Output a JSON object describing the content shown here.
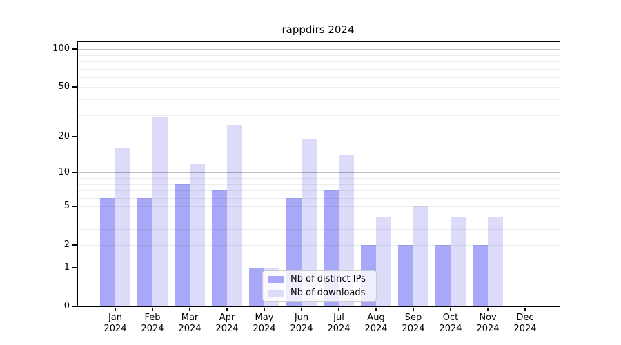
{
  "title": "rappdirs 2024",
  "legend": {
    "items": [
      {
        "label": "Nb of distinct IPs",
        "color": "#a8a8f8"
      },
      {
        "label": "Nb of downloads",
        "color": "#dcdcfa"
      }
    ]
  },
  "chart_data": {
    "type": "bar",
    "title": "rappdirs 2024",
    "categories": [
      "Jan 2024",
      "Feb 2024",
      "Mar 2024",
      "Apr 2024",
      "May 2024",
      "Jun 2024",
      "Jul 2024",
      "Aug 2024",
      "Sep 2024",
      "Oct 2024",
      "Nov 2024",
      "Dec 2024"
    ],
    "x_tick_months": [
      "Jan",
      "Feb",
      "Mar",
      "Apr",
      "May",
      "Jun",
      "Jul",
      "Aug",
      "Sep",
      "Oct",
      "Nov",
      "Dec"
    ],
    "x_tick_year": "2024",
    "series": [
      {
        "name": "Nb of distinct IPs",
        "color": "#a8a8f8",
        "values": [
          6,
          6,
          8,
          7,
          1,
          6,
          7,
          2,
          2,
          2,
          2,
          0
        ]
      },
      {
        "name": "Nb of downloads",
        "color": "#dcdcfa",
        "values": [
          16,
          29,
          12,
          25,
          1,
          19,
          14,
          4,
          5,
          4,
          4,
          0
        ]
      }
    ],
    "xlabel": "",
    "ylabel": "",
    "yscale": "log10(1+y)",
    "ylim": [
      0,
      113
    ],
    "yticks": [
      0,
      1,
      2,
      5,
      10,
      20,
      50,
      100
    ],
    "major_gridlines": [
      1,
      10,
      100
    ],
    "minor_gridlines": [
      2,
      3,
      4,
      5,
      6,
      7,
      8,
      9,
      20,
      30,
      40,
      50,
      60,
      70,
      80,
      90
    ],
    "grid": true,
    "legend_position": "inside lower center"
  },
  "colors": {
    "background": "#ffffff",
    "spine": "#000000",
    "major_grid": "#b9b9b9",
    "minor_grid": "#ededed",
    "legend_border": "#cccccc"
  }
}
